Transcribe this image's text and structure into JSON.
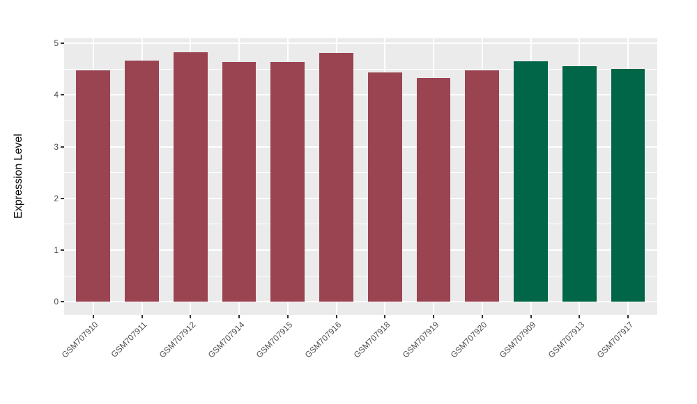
{
  "chart_data": {
    "type": "bar",
    "title": "",
    "xlabel": "",
    "ylabel": "Expression Level",
    "ylim": [
      0,
      5
    ],
    "yticks": [
      0,
      1,
      2,
      3,
      4,
      5
    ],
    "yticks_minor": [
      0.5,
      1.5,
      2.5,
      3.5,
      4.5
    ],
    "grid": "white major and minor horizontal gridlines plus vertical major gridlines at each category center on grey panel",
    "legend_position": "none",
    "categories": [
      "GSM707910",
      "GSM707911",
      "GSM707912",
      "GSM707914",
      "GSM707915",
      "GSM707916",
      "GSM707918",
      "GSM707919",
      "GSM707920",
      "GSM707909",
      "GSM707913",
      "GSM707917"
    ],
    "values": [
      4.48,
      4.66,
      4.82,
      4.63,
      4.64,
      4.81,
      4.44,
      4.33,
      4.48,
      4.65,
      4.56,
      4.5
    ],
    "bar_colors": [
      "#9A4452",
      "#9A4452",
      "#9A4452",
      "#9A4452",
      "#9A4452",
      "#9A4452",
      "#9A4452",
      "#9A4452",
      "#9A4452",
      "#006647",
      "#006647",
      "#006647"
    ],
    "color_groups": {
      "maroon": "#9A4452",
      "green": "#006647"
    }
  },
  "style": {
    "figure_background": "#FFFFFF",
    "panel_background": "#EBEBEB",
    "gridline_color": "#FFFFFF",
    "axis_text_color": "#4D4D4D",
    "axis_title_color": "#000000",
    "tick_mark_color": "#333333"
  }
}
